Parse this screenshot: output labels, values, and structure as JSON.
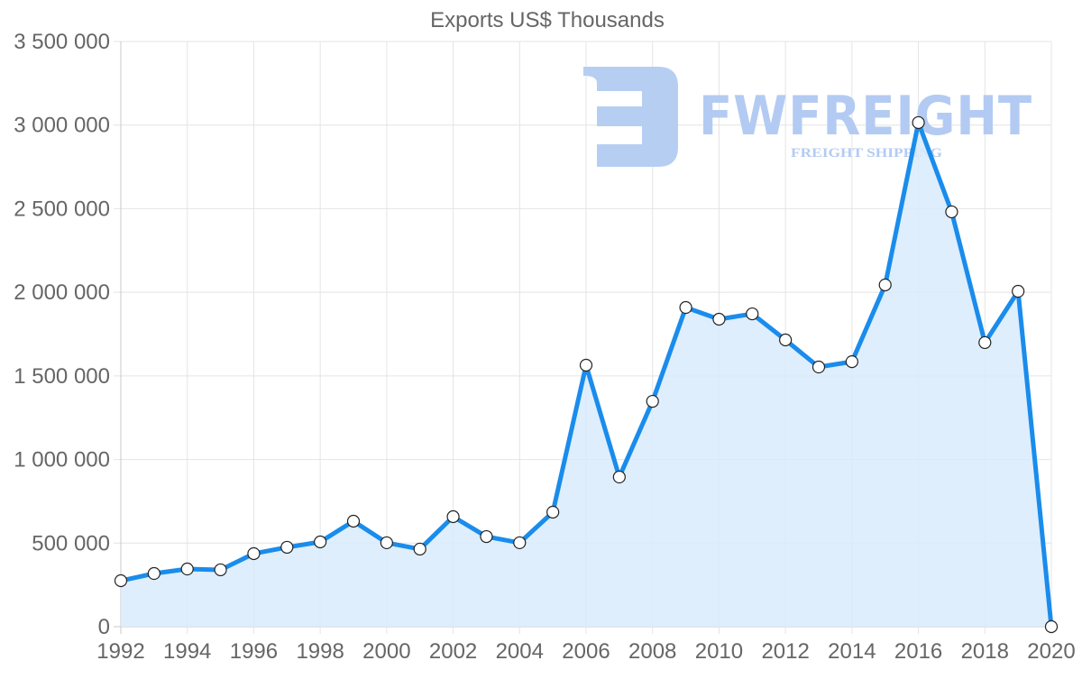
{
  "chart_data": {
    "type": "area",
    "title": "Exports US$ Thousands",
    "xlabel": "",
    "ylabel": "",
    "x": [
      1992,
      1993,
      1994,
      1995,
      1996,
      1997,
      1998,
      1999,
      2000,
      2001,
      2002,
      2003,
      2004,
      2005,
      2006,
      2007,
      2008,
      2009,
      2010,
      2011,
      2012,
      2013,
      2014,
      2015,
      2016,
      2017,
      2018,
      2019,
      2020
    ],
    "series": [
      {
        "name": "Exports US$ Thousands",
        "values": [
          275000,
          318000,
          345000,
          340000,
          437000,
          475000,
          507000,
          631000,
          502000,
          464000,
          658000,
          539000,
          502000,
          685000,
          1564000,
          895000,
          1348000,
          1909000,
          1839000,
          1871000,
          1715000,
          1553000,
          1585000,
          2044000,
          3015000,
          2481000,
          1699000,
          2006000,
          0
        ],
        "color": "#1a8cec",
        "fill": "#d8ebfc"
      }
    ],
    "ylim": [
      0,
      3500000
    ],
    "y_ticks": [
      "0",
      "500 000",
      "1 000 000",
      "1 500 000",
      "2 000 000",
      "2 500 000",
      "3 000 000",
      "3 500 000"
    ],
    "x_ticks": [
      "1992",
      "1994",
      "1996",
      "1998",
      "2000",
      "2002",
      "2004",
      "2006",
      "2008",
      "2010",
      "2012",
      "2014",
      "2016",
      "2018",
      "2020"
    ],
    "grid": true,
    "legend": "none"
  },
  "watermark": {
    "brand": "FWFREIGHT",
    "tagline": "FREIGHT SHIPPING",
    "color": "#b3cbf2"
  }
}
